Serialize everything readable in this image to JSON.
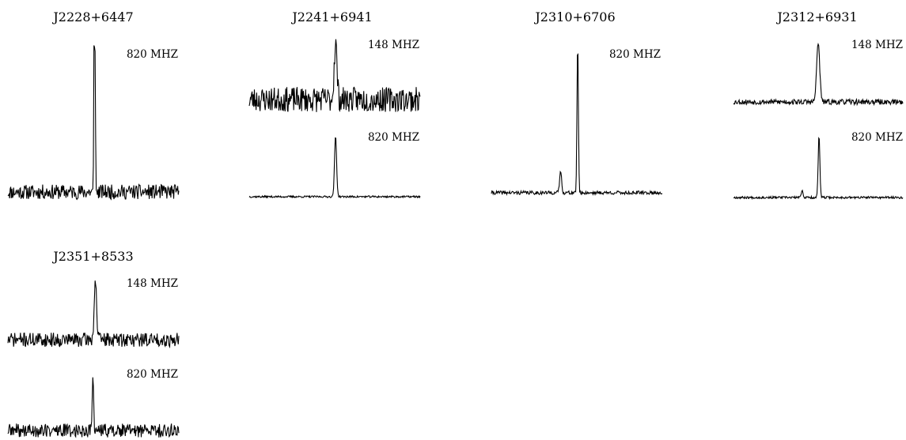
{
  "chart_data": [
    {
      "type": "line",
      "title": "J2228+6447",
      "traces": [
        {
          "label": "820 MHZ",
          "peaks": [
            {
              "center": 0.507,
              "width": 0.004,
              "amp": 1.0,
              "flat_top": true
            }
          ],
          "noise": 0.05
        }
      ]
    },
    {
      "type": "line",
      "title": "J2241+6941",
      "traces": [
        {
          "label": "148 MHZ",
          "peaks": [
            {
              "center": 0.505,
              "width": 0.008,
              "amp": 1.0
            }
          ],
          "noise": 0.22
        },
        {
          "label": "820 MHZ",
          "peaks": [
            {
              "center": 0.505,
              "width": 0.006,
              "amp": 1.0
            }
          ],
          "noise": 0.015
        }
      ]
    },
    {
      "type": "line",
      "title": "J2310+6706",
      "traces": [
        {
          "label": "820 MHZ",
          "peaks": [
            {
              "center": 0.505,
              "width": 0.004,
              "amp": 1.0
            },
            {
              "center": 0.405,
              "width": 0.006,
              "amp": 0.14
            }
          ],
          "noise": 0.012
        }
      ]
    },
    {
      "type": "line",
      "title": "J2312+6931",
      "traces": [
        {
          "label": "148 MHZ",
          "peaks": [
            {
              "center": 0.5,
              "width": 0.009,
              "amp": 1.0
            }
          ],
          "noise": 0.045
        },
        {
          "label": "820 MHZ",
          "peaks": [
            {
              "center": 0.505,
              "width": 0.005,
              "amp": 1.0
            },
            {
              "center": 0.405,
              "width": 0.005,
              "amp": 0.12
            }
          ],
          "noise": 0.018
        }
      ]
    },
    {
      "type": "line",
      "title": "J2351+8533",
      "traces": [
        {
          "label": "148 MHZ",
          "peaks": [
            {
              "center": 0.512,
              "width": 0.007,
              "amp": 1.0
            }
          ],
          "noise": 0.12
        },
        {
          "label": "820 MHZ",
          "peaks": [
            {
              "center": 0.498,
              "width": 0.004,
              "amp": 1.0
            }
          ],
          "noise": 0.12
        }
      ]
    }
  ]
}
